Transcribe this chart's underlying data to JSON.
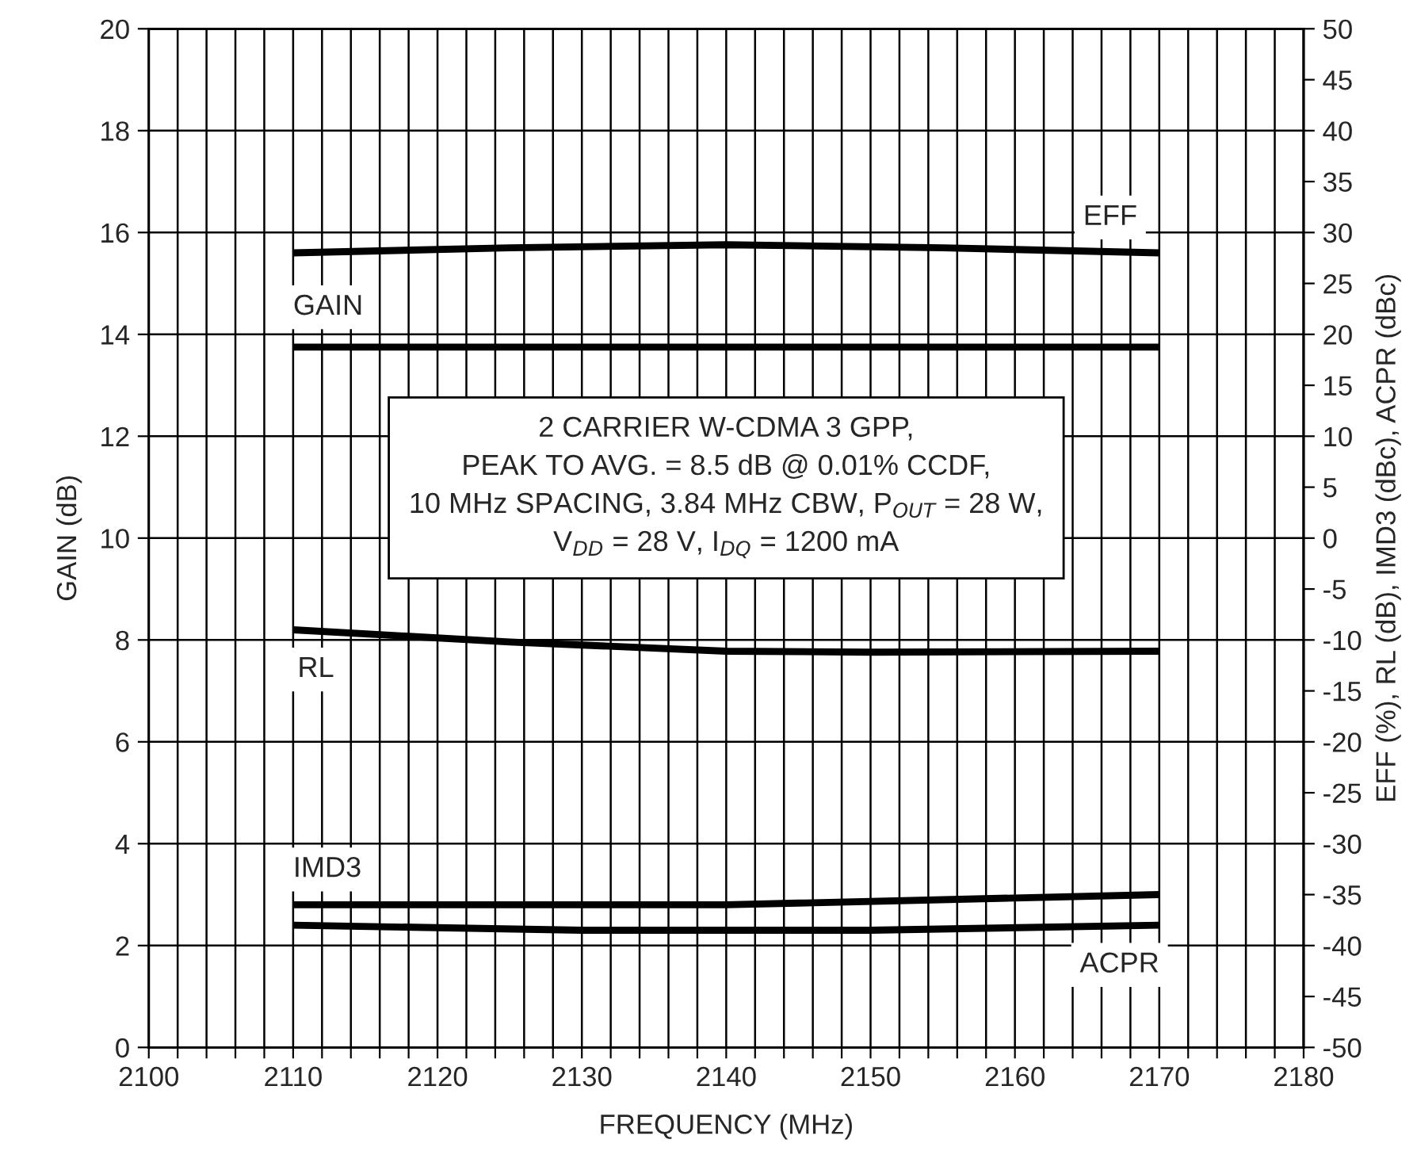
{
  "chart_data": {
    "type": "line",
    "xlabel": "FREQUENCY (MHz)",
    "ylabel": "GAIN (dB)",
    "y2label": "EFF (%), RL (dB), IMD3 (dBc), ACPR (dBc)",
    "annotations": [
      "2 CARRIER W-CDMA 3 GPP,\nPEAK TO AVG. = 8.5 dB @ 0.01% CCDF,\n10 MHz SPACING, 3.84 MHz CBW, P$_{OUT}$ = 28 W,\nV$_{DD}$ = 28 V, I$_{DQ}$ = 1200 mA"
    ],
    "series": [
      {
        "name": "EFF",
        "color": "#000000",
        "axis": "y2",
        "x": [
          2110,
          2125,
          2140,
          2155,
          2170
        ],
        "values": [
          28,
          28.5,
          28.8,
          28.5,
          28
        ]
      },
      {
        "name": "GAIN",
        "color": "#000000",
        "x": [
          2110,
          2140,
          2170
        ],
        "values": [
          13.75,
          13.75,
          13.75
        ]
      },
      {
        "name": "RL",
        "color": "#000000",
        "axis": "y2",
        "x": [
          2110,
          2125,
          2140,
          2150,
          2170
        ],
        "values": [
          -9,
          -10.2,
          -11.1,
          -11.2,
          -11.1
        ]
      },
      {
        "name": "IMD3",
        "color": "#000000",
        "axis": "y2",
        "x": [
          2110,
          2140,
          2170
        ],
        "values": [
          -36,
          -36,
          -35
        ]
      },
      {
        "name": "ACPR",
        "color": "#000000",
        "axis": "y2",
        "x": [
          2110,
          2130,
          2150,
          2170
        ],
        "values": [
          -38,
          -38.5,
          -38.5,
          -38
        ]
      }
    ],
    "xlim": [
      2100,
      2180
    ],
    "xticks": [
      2100,
      {
        "value": 2102,
        "label": null
      },
      {
        "value": 2104,
        "label": null
      },
      {
        "value": 2106,
        "label": null
      },
      {
        "value": 2108,
        "label": null
      },
      2110,
      {
        "value": 2112,
        "label": null
      },
      {
        "value": 2114,
        "label": null
      },
      {
        "value": 2116,
        "label": null
      },
      {
        "value": 2118,
        "label": null
      },
      2120,
      {
        "value": 2122,
        "label": null
      },
      {
        "value": 2124,
        "label": null
      },
      {
        "value": 2126,
        "label": null
      },
      {
        "value": 2128,
        "label": null
      },
      2130,
      {
        "value": 2132,
        "label": null
      },
      {
        "value": 2134,
        "label": null
      },
      {
        "value": 2136,
        "label": null
      },
      {
        "value": 2138,
        "label": null
      },
      2140,
      {
        "value": 2142,
        "label": null
      },
      {
        "value": 2144,
        "label": null
      },
      {
        "value": 2146,
        "label": null
      },
      {
        "value": 2148,
        "label": null
      },
      2150,
      {
        "value": 2152,
        "label": null
      },
      {
        "value": 2154,
        "label": null
      },
      {
        "value": 2156,
        "label": null
      },
      {
        "value": 2158,
        "label": null
      },
      2160,
      {
        "value": 2162,
        "label": null
      },
      {
        "value": 2164,
        "label": null
      },
      {
        "value": 2166,
        "label": null
      },
      {
        "value": 2168,
        "label": null
      },
      2170,
      {
        "value": 2172,
        "label": null
      },
      {
        "value": 2174,
        "label": null
      },
      {
        "value": 2176,
        "label": null
      },
      {
        "value": 2178,
        "label": null
      },
      2180
    ],
    "ylim": [
      0,
      20
    ],
    "yticks": [
      0,
      2,
      4,
      6,
      8,
      10,
      12,
      14,
      16,
      18,
      20
    ],
    "y2lim": [
      -50,
      50
    ],
    "y2ticks": [
      -50,
      -45,
      -40,
      -35,
      -30,
      -25,
      -20,
      -15,
      -10,
      -5,
      0,
      5,
      10,
      15,
      20,
      25,
      30,
      35,
      40,
      45,
      50
    ],
    "grid": true,
    "line_style": "solid",
    "marker": "none",
    "legend": false
  }
}
